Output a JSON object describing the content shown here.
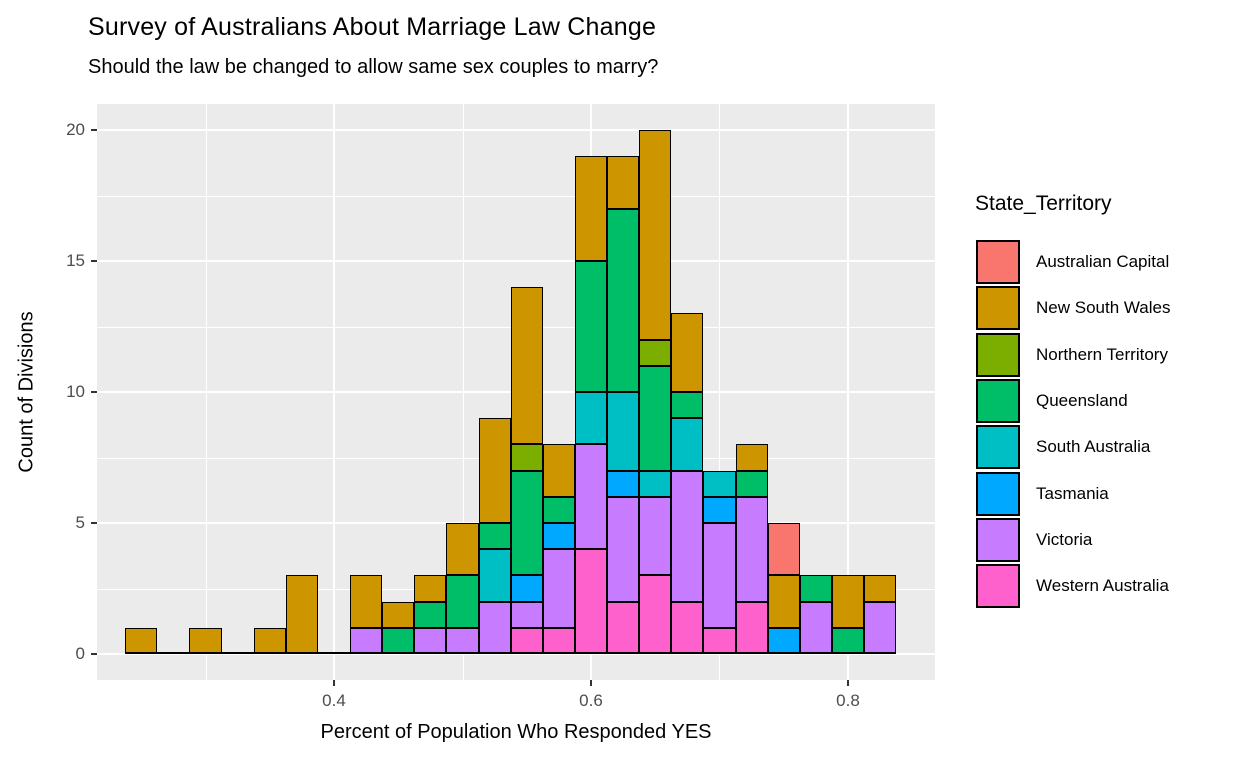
{
  "header": {
    "title": "Survey of Australians About Marriage Law Change",
    "subtitle": "Should the law be changed to allow same sex couples to marry?"
  },
  "colors": {
    "panel_bg": "#EBEBEB",
    "grid": "#FFFFFF",
    "bar_outline": "#000000",
    "tick_label": "#4D4D4D",
    "text": "#000000"
  },
  "chart_data": {
    "type": "bar",
    "subtype": "stacked-histogram",
    "title": "Survey of Australians About Marriage Law Change",
    "subtitle": "Should the law be changed to allow same sex couples to marry?",
    "xlabel": "Percent of Population Who Responded YES",
    "ylabel": "Count of Divisions",
    "legend_title": "State_Territory",
    "legend_position": "right",
    "grid": true,
    "xlim": [
      0.216,
      0.868
    ],
    "ylim": [
      -1,
      21
    ],
    "bin_width": 0.025,
    "x_ticks": [
      {
        "value": 0.4,
        "label": "0.4"
      },
      {
        "value": 0.6,
        "label": "0.6"
      },
      {
        "value": 0.8,
        "label": "0.8"
      }
    ],
    "y_ticks": [
      {
        "value": 0,
        "label": "0"
      },
      {
        "value": 5,
        "label": "5"
      },
      {
        "value": 10,
        "label": "10"
      },
      {
        "value": 15,
        "label": "15"
      },
      {
        "value": 20,
        "label": "20"
      }
    ],
    "states": [
      {
        "key": "ACT",
        "label": "Australian Capital",
        "color": "#F8766D"
      },
      {
        "key": "NSW",
        "label": "New South Wales",
        "color": "#CD9600"
      },
      {
        "key": "NT",
        "label": "Northern Territory",
        "color": "#7CAE00"
      },
      {
        "key": "QLD",
        "label": "Queensland",
        "color": "#00BE67"
      },
      {
        "key": "SA",
        "label": "South Australia",
        "color": "#00BFC4"
      },
      {
        "key": "TAS",
        "label": "Tasmania",
        "color": "#00A9FF"
      },
      {
        "key": "VIC",
        "label": "Victoria",
        "color": "#C77CFF"
      },
      {
        "key": "WA",
        "label": "Western Australia",
        "color": "#FF61CC"
      }
    ],
    "stack_order_bottom_to_top": [
      "WA",
      "VIC",
      "TAS",
      "SA",
      "QLD",
      "NT",
      "NSW",
      "ACT"
    ],
    "bins": [
      {
        "center": 0.25,
        "total": 1,
        "segments": {
          "NSW": 1
        }
      },
      {
        "center": 0.3,
        "total": 1,
        "segments": {
          "NSW": 1
        }
      },
      {
        "center": 0.35,
        "total": 1,
        "segments": {
          "NSW": 1
        }
      },
      {
        "center": 0.375,
        "total": 3,
        "segments": {
          "NSW": 3
        }
      },
      {
        "center": 0.425,
        "total": 3,
        "segments": {
          "VIC": 1,
          "NSW": 2
        }
      },
      {
        "center": 0.45,
        "total": 2,
        "segments": {
          "QLD": 1,
          "NSW": 1
        }
      },
      {
        "center": 0.475,
        "total": 3,
        "segments": {
          "VIC": 1,
          "QLD": 1,
          "NSW": 1
        }
      },
      {
        "center": 0.5,
        "total": 5,
        "segments": {
          "VIC": 1,
          "QLD": 2,
          "NSW": 2
        }
      },
      {
        "center": 0.525,
        "total": 9,
        "segments": {
          "VIC": 2,
          "SA": 2,
          "QLD": 1,
          "NSW": 4
        }
      },
      {
        "center": 0.55,
        "total": 14,
        "segments": {
          "WA": 1,
          "VIC": 1,
          "TAS": 1,
          "QLD": 4,
          "NT": 1,
          "NSW": 6
        }
      },
      {
        "center": 0.575,
        "total": 8,
        "segments": {
          "WA": 1,
          "VIC": 3,
          "TAS": 1,
          "QLD": 1,
          "NSW": 2
        }
      },
      {
        "center": 0.6,
        "total": 19,
        "segments": {
          "WA": 4,
          "VIC": 4,
          "SA": 2,
          "QLD": 5,
          "NSW": 4
        }
      },
      {
        "center": 0.625,
        "total": 19,
        "segments": {
          "WA": 2,
          "VIC": 4,
          "TAS": 1,
          "SA": 3,
          "QLD": 7,
          "NSW": 2
        }
      },
      {
        "center": 0.65,
        "total": 20,
        "segments": {
          "WA": 3,
          "VIC": 3,
          "SA": 1,
          "QLD": 4,
          "NT": 1,
          "NSW": 8
        }
      },
      {
        "center": 0.675,
        "total": 13,
        "segments": {
          "WA": 2,
          "VIC": 5,
          "SA": 2,
          "QLD": 1,
          "NSW": 3
        }
      },
      {
        "center": 0.7,
        "total": 7,
        "segments": {
          "WA": 1,
          "VIC": 4,
          "TAS": 1,
          "SA": 1
        }
      },
      {
        "center": 0.725,
        "total": 8,
        "segments": {
          "WA": 2,
          "VIC": 4,
          "QLD": 1,
          "NSW": 1
        }
      },
      {
        "center": 0.75,
        "total": 5,
        "segments": {
          "TAS": 1,
          "NSW": 2,
          "ACT": 2
        }
      },
      {
        "center": 0.775,
        "total": 3,
        "segments": {
          "VIC": 2,
          "QLD": 1
        }
      },
      {
        "center": 0.8,
        "total": 3,
        "segments": {
          "QLD": 1,
          "NSW": 2
        }
      },
      {
        "center": 0.825,
        "total": 3,
        "segments": {
          "VIC": 2,
          "NSW": 1
        }
      }
    ]
  }
}
